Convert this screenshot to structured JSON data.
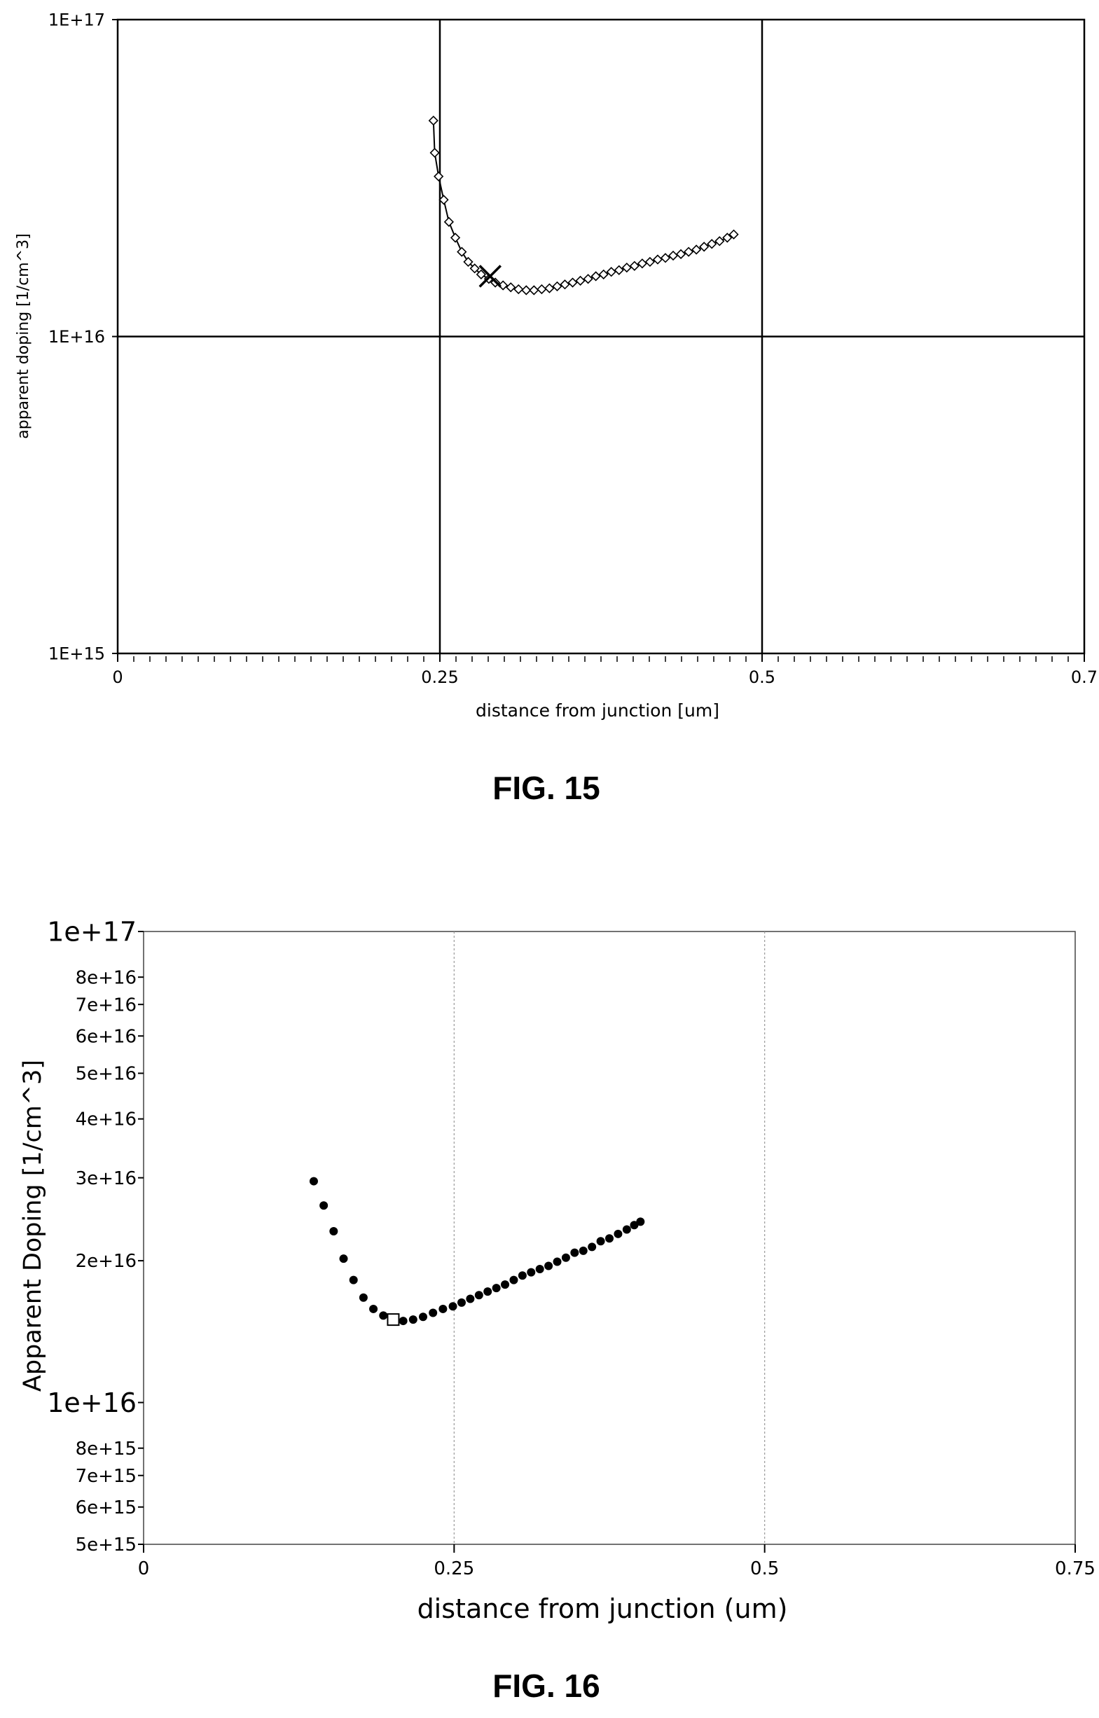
{
  "figures": {
    "fig15_caption": "FIG. 15",
    "fig16_caption": "FIG. 16"
  },
  "chart_data": [
    {
      "type": "line",
      "yscale": "log",
      "xlim": [
        0,
        0.75
      ],
      "ylim": [
        1000000000000000.0,
        1e+17
      ],
      "grid": true,
      "x_ticks": [
        0,
        0.25,
        0.5,
        0.75
      ],
      "x_tick_labels": [
        "0",
        "0.25",
        "0.5",
        "0.7"
      ],
      "y_ticks": [
        1000000000000000.0,
        1e+16,
        1e+17
      ],
      "y_tick_labels": [
        "1E+15",
        "1E+16",
        "1E+17"
      ],
      "xlabel": "distance from junction [um]",
      "ylabel": "apparent doping [1/cm^3]",
      "marker": "diamond",
      "series": [
        {
          "x": [
            0.245,
            0.246,
            0.249,
            0.253,
            0.257,
            0.262,
            0.267,
            0.272,
            0.277,
            0.282,
            0.288,
            0.293,
            0.299,
            0.305,
            0.311,
            0.317,
            0.323,
            0.329,
            0.335,
            0.341,
            0.347,
            0.353,
            0.359,
            0.365,
            0.371,
            0.377,
            0.383,
            0.389,
            0.395,
            0.401,
            0.407,
            0.413,
            0.419,
            0.425,
            0.431,
            0.437,
            0.443,
            0.449,
            0.455,
            0.461,
            0.467,
            0.473,
            0.478
          ],
          "y": [
            4.8e+16,
            3.8e+16,
            3.2e+16,
            2.7e+16,
            2.3e+16,
            2.05e+16,
            1.85e+16,
            1.72e+16,
            1.64e+16,
            1.57e+16,
            1.52e+16,
            1.48e+16,
            1.45e+16,
            1.43e+16,
            1.41e+16,
            1.4e+16,
            1.4e+16,
            1.41e+16,
            1.42e+16,
            1.44e+16,
            1.46e+16,
            1.48e+16,
            1.5e+16,
            1.52e+16,
            1.55e+16,
            1.57e+16,
            1.6e+16,
            1.62e+16,
            1.65e+16,
            1.67e+16,
            1.7e+16,
            1.72e+16,
            1.75e+16,
            1.77e+16,
            1.8e+16,
            1.82e+16,
            1.85e+16,
            1.88e+16,
            1.92e+16,
            1.96e+16,
            2e+16,
            2.05e+16,
            2.1e+16
          ]
        }
      ],
      "highlight": {
        "marker": "x",
        "x": 0.289,
        "y": 1.55e+16
      }
    },
    {
      "type": "scatter",
      "yscale": "log",
      "xlim": [
        0,
        0.75
      ],
      "ylim": [
        5000000000000000.0,
        1e+17
      ],
      "grid": true,
      "x_ticks": [
        0,
        0.25,
        0.5,
        0.75
      ],
      "x_tick_labels": [
        "0",
        "0.25",
        "0.5",
        "0.75"
      ],
      "y_ticks": [
        1e+17,
        8e+16,
        7e+16,
        6e+16,
        5e+16,
        4e+16,
        3e+16,
        2e+16,
        1e+16,
        8000000000000000.0,
        7000000000000000.0,
        6000000000000000.0,
        5000000000000000.0
      ],
      "y_tick_labels": [
        "1e+17",
        "8e+16",
        "7e+16",
        "6e+16",
        "5e+16",
        "4e+16",
        "3e+16",
        "2e+16",
        "1e+16",
        "8e+15",
        "7e+15",
        "6e+15",
        "5e+15"
      ],
      "xlabel": "distance from junction (um)",
      "ylabel": "Apparent Doping [1/cm^3]",
      "marker": "filled-circle",
      "series": [
        {
          "x": [
            0.137,
            0.145,
            0.153,
            0.161,
            0.169,
            0.177,
            0.185,
            0.193,
            0.201,
            0.209,
            0.217,
            0.225,
            0.233,
            0.241,
            0.249,
            0.256,
            0.263,
            0.27,
            0.277,
            0.284,
            0.291,
            0.298,
            0.305,
            0.312,
            0.319,
            0.326,
            0.333,
            0.34,
            0.347,
            0.354,
            0.361,
            0.368,
            0.375,
            0.382,
            0.389,
            0.395,
            0.4
          ],
          "y": [
            2.95e+16,
            2.62e+16,
            2.31e+16,
            2.02e+16,
            1.82e+16,
            1.67e+16,
            1.58e+16,
            1.53e+16,
            1.5e+16,
            1.49e+16,
            1.5e+16,
            1.52e+16,
            1.55e+16,
            1.58e+16,
            1.6e+16,
            1.63e+16,
            1.66e+16,
            1.69e+16,
            1.72e+16,
            1.75e+16,
            1.78e+16,
            1.82e+16,
            1.86e+16,
            1.89e+16,
            1.92e+16,
            1.95e+16,
            1.99e+16,
            2.03e+16,
            2.08e+16,
            2.1e+16,
            2.14e+16,
            2.2e+16,
            2.23e+16,
            2.28e+16,
            2.33e+16,
            2.38e+16,
            2.42e+16
          ]
        }
      ],
      "highlight": {
        "marker": "open-square",
        "x": 0.201,
        "y": 1.5e+16
      }
    }
  ]
}
